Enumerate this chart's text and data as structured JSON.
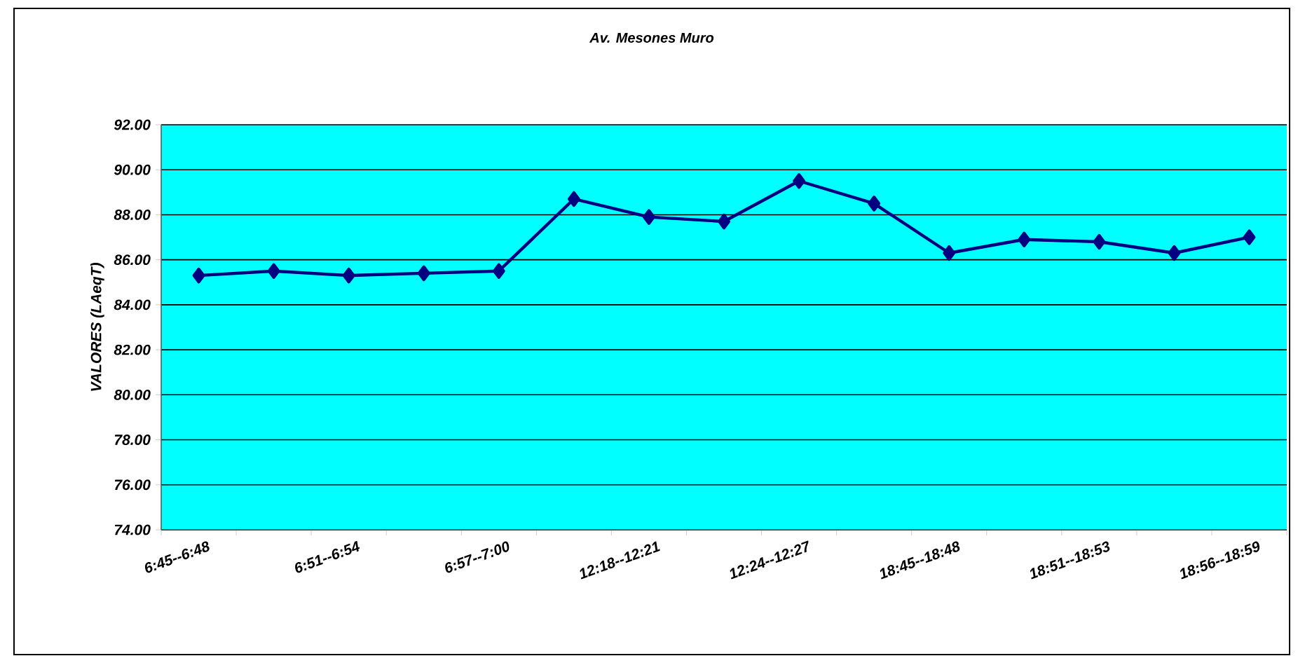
{
  "chart_data": {
    "type": "line",
    "title": "Av. Mesones Muro",
    "ylabel": "VALORES (LAeqT)",
    "categories": [
      "6:45--6:48",
      null,
      "6:51--6:54",
      null,
      "6:57--7:00",
      null,
      "12:18--12:21",
      null,
      "12:24--12:27",
      null,
      "18:45--18:48",
      null,
      "18:51--18:53",
      null,
      "18:56--18:59"
    ],
    "series": [
      {
        "color": "#000080",
        "values": [
          85.3,
          85.5,
          85.3,
          85.4,
          85.5,
          88.7,
          87.9,
          87.7,
          89.5,
          88.5,
          86.3,
          86.9,
          86.8,
          86.3,
          87.0
        ]
      }
    ],
    "ylim": [
      74,
      92
    ],
    "yticks": [
      {
        "value": 74,
        "label": "74.00"
      },
      {
        "value": 76,
        "label": "76.00"
      },
      {
        "value": 78,
        "label": "78.00"
      },
      {
        "value": 80,
        "label": "80.00"
      },
      {
        "value": 82,
        "label": "82.00"
      },
      {
        "value": 84,
        "label": "84.00"
      },
      {
        "value": 86,
        "label": "86.00"
      },
      {
        "value": 88,
        "label": "88.00"
      },
      {
        "value": 90,
        "label": "90.00"
      },
      {
        "value": 92,
        "label": "92.00"
      }
    ],
    "grid": "y",
    "marker": "diamond",
    "line_style": "solid"
  }
}
